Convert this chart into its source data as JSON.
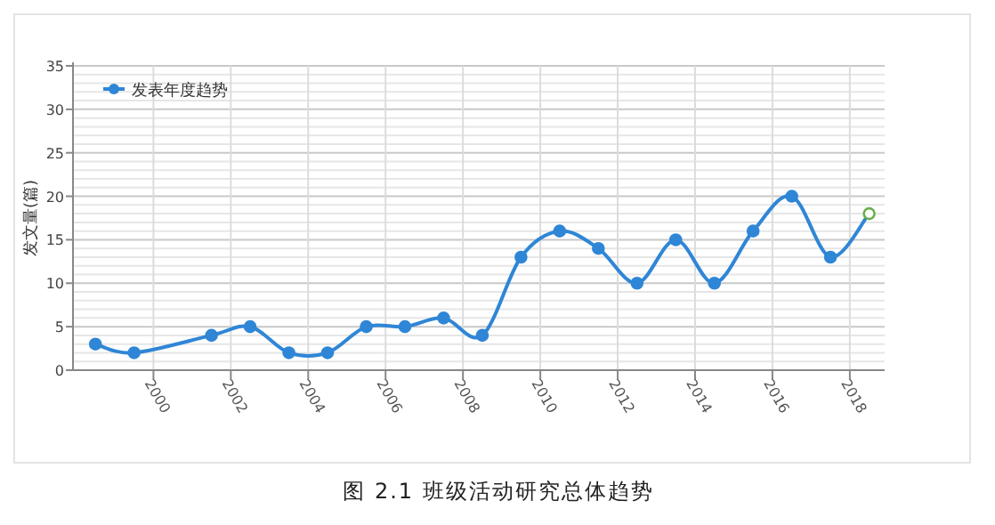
{
  "chart_data": {
    "type": "line",
    "ylabel": "发文量(篇)",
    "annotations": [
      "图 2.1 班级活动研究总体趋势"
    ],
    "series": [
      {
        "name": "发表年度趋势",
        "color": "#2f86d6",
        "x": [
          1998.5,
          1999.5,
          2001.5,
          2002.5,
          2003.5,
          2004.5,
          2005.5,
          2006.5,
          2007.5,
          2008.5,
          2009.5,
          2010.5,
          2011.5,
          2012.5,
          2013.5,
          2014.5,
          2015.5,
          2016.5,
          2017.5,
          2018.5
        ],
        "values": [
          3,
          2,
          4,
          5,
          2,
          2,
          5,
          5,
          6,
          4,
          13,
          16,
          14,
          10,
          15,
          10,
          16,
          20,
          13,
          18
        ],
        "colors": [
          "#2f86d6",
          "#2f86d6",
          "#2f86d6",
          "#2f86d6",
          "#2f86d6",
          "#2f86d6",
          "#2f86d6",
          "#2f86d6",
          "#2f86d6",
          "#2f86d6",
          "#2f86d6",
          "#2f86d6",
          "#2f86d6",
          "#2f86d6",
          "#2f86d6",
          "#2f86d6",
          "#2f86d6",
          "#2f86d6",
          "#2f86d6",
          "#6ab04c"
        ]
      }
    ],
    "xlim": [
      1997.92,
      2018.9
    ],
    "xticks": [
      2000,
      2002,
      2004,
      2006,
      2008,
      2010,
      2012,
      2014,
      2016,
      2018
    ],
    "ylim": [
      0,
      35
    ],
    "yticks": [
      0,
      5,
      10,
      15,
      20,
      25,
      30,
      35
    ],
    "grid": true,
    "legend": "top left",
    "marker": "circle",
    "line_style": "solid"
  }
}
